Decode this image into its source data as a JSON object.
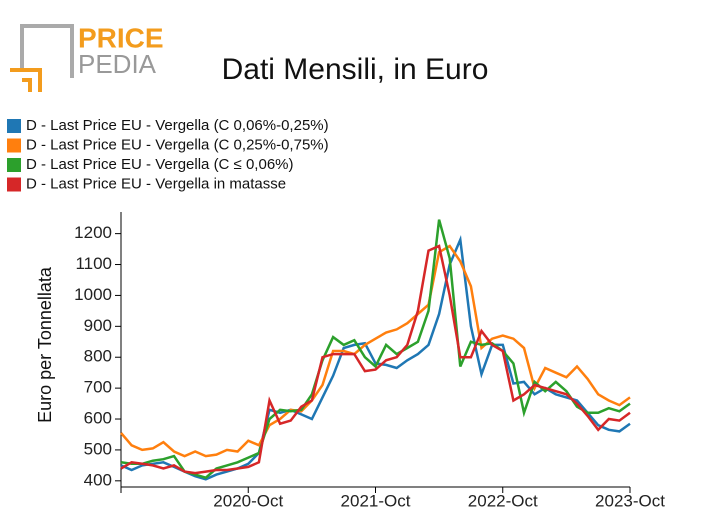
{
  "logo": {
    "top": "PRICE",
    "bottom": "PEDIA"
  },
  "chart_data": {
    "type": "line",
    "title": "Dati Mensili, in Euro",
    "y_label": "Euro per Tonnellata",
    "x": [
      0,
      1,
      2,
      3,
      4,
      5,
      6,
      7,
      8,
      9,
      10,
      11,
      12,
      13,
      14,
      15,
      16,
      17,
      18,
      19,
      20,
      21,
      22,
      23,
      24,
      25,
      26,
      27,
      28,
      29,
      30,
      31,
      32,
      33,
      34,
      35,
      36,
      37,
      38,
      39,
      40,
      41,
      42,
      43,
      44,
      45,
      46,
      47,
      48
    ],
    "xlim": [
      0,
      48
    ],
    "xticks": [
      {
        "value": 12,
        "label": "2020-Oct"
      },
      {
        "value": 24,
        "label": "2021-Oct"
      },
      {
        "value": 36,
        "label": "2022-Oct"
      },
      {
        "value": 48,
        "label": "2023-Oct"
      }
    ],
    "ylim": [
      380,
      1270
    ],
    "yticks": [
      400,
      500,
      600,
      700,
      800,
      900,
      1000,
      1100,
      1200
    ],
    "legend": "top-left",
    "series": [
      {
        "name": "D - Last Price EU - Vergella (C 0,06%-0,25%)",
        "color": "#1f77b4",
        "values": [
          450,
          435,
          450,
          455,
          460,
          445,
          430,
          415,
          405,
          420,
          430,
          440,
          455,
          490,
          630,
          620,
          630,
          615,
          600,
          670,
          740,
          830,
          840,
          845,
          780,
          775,
          765,
          790,
          810,
          840,
          940,
          1100,
          1180,
          900,
          745,
          840,
          840,
          715,
          720,
          680,
          700,
          680,
          670,
          660,
          620,
          580,
          565,
          560,
          585
        ]
      },
      {
        "name": "D - Last Price EU - Vergella (C 0,25%-0,75%)",
        "color": "#ff7f0e",
        "values": [
          555,
          515,
          500,
          505,
          525,
          495,
          480,
          495,
          480,
          485,
          500,
          495,
          530,
          515,
          580,
          600,
          630,
          625,
          660,
          710,
          820,
          820,
          810,
          840,
          860,
          880,
          890,
          910,
          940,
          970,
          1140,
          1160,
          1110,
          1030,
          830,
          860,
          870,
          860,
          830,
          700,
          765,
          750,
          735,
          770,
          730,
          680,
          660,
          645,
          670
        ]
      },
      {
        "name": "D - Last Price EU - Vergella (C ≤ 0,06%)",
        "color": "#2ca02c",
        "values": [
          460,
          455,
          455,
          465,
          470,
          480,
          430,
          420,
          410,
          440,
          450,
          460,
          475,
          490,
          600,
          630,
          625,
          630,
          680,
          790,
          865,
          840,
          855,
          800,
          770,
          840,
          810,
          830,
          850,
          950,
          1245,
          1120,
          770,
          850,
          840,
          845,
          820,
          780,
          620,
          720,
          690,
          720,
          690,
          640,
          620,
          620,
          635,
          625,
          650
        ]
      },
      {
        "name": "D - Last Price EU - Vergella in matasse",
        "color": "#d62728",
        "values": [
          440,
          460,
          455,
          450,
          440,
          450,
          430,
          425,
          430,
          435,
          435,
          440,
          445,
          460,
          660,
          585,
          595,
          640,
          660,
          800,
          810,
          810,
          810,
          755,
          760,
          790,
          800,
          840,
          950,
          1145,
          1160,
          1000,
          800,
          800,
          885,
          840,
          820,
          660,
          680,
          710,
          700,
          690,
          680,
          650,
          610,
          565,
          600,
          595,
          620
        ]
      }
    ]
  }
}
